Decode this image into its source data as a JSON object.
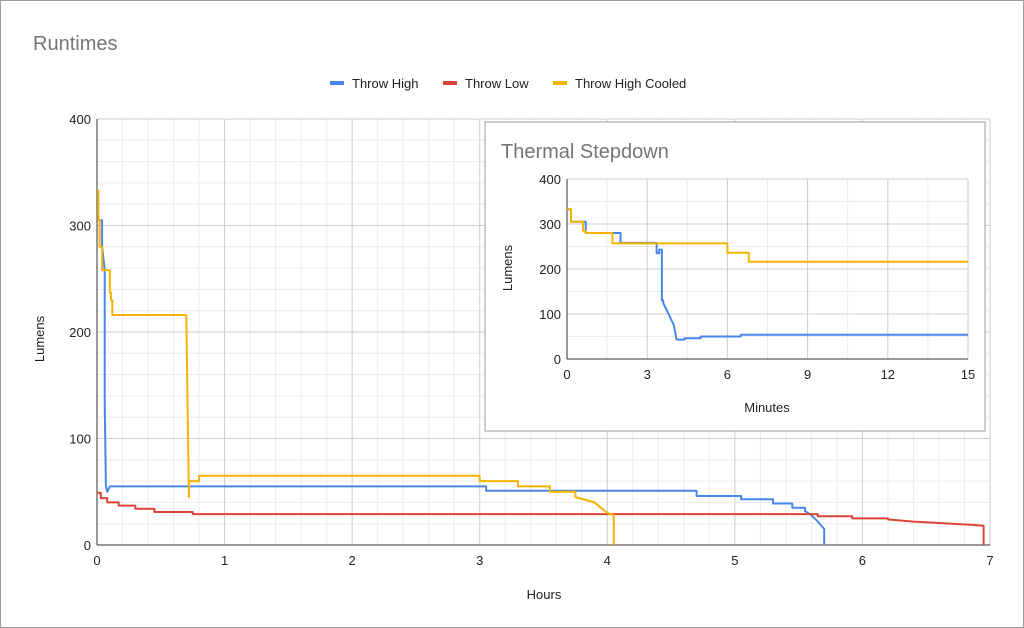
{
  "chart_data": [
    {
      "type": "line",
      "title": "Runtimes",
      "xlabel": "Hours",
      "ylabel": "Lumens",
      "xlim": [
        0,
        7
      ],
      "ylim": [
        0,
        400
      ],
      "xticks": [
        0,
        1,
        2,
        3,
        4,
        5,
        6,
        7
      ],
      "yticks": [
        0,
        100,
        200,
        300,
        400
      ],
      "grid": true,
      "legend": "top-center",
      "series": [
        {
          "name": "Throw High",
          "color": "#4a86e8",
          "x": [
            0,
            0.01,
            0.01,
            0.04,
            0.04,
            0.06,
            0.06,
            0.07,
            0.08,
            0.08,
            0.1,
            0.1,
            3.05,
            3.05,
            4.7,
            4.7,
            5.05,
            5.05,
            5.3,
            5.3,
            5.45,
            5.45,
            5.55,
            5.55,
            5.6,
            5.65,
            5.7,
            5.7
          ],
          "y": [
            333,
            333,
            305,
            305,
            280,
            258,
            135,
            55,
            50,
            50,
            55,
            55,
            55,
            51,
            51,
            46,
            46,
            43,
            43,
            39,
            39,
            35,
            35,
            32,
            28,
            22,
            15,
            0
          ]
        },
        {
          "name": "Throw Low",
          "color": "#db4437",
          "x": [
            0,
            0.03,
            0.03,
            0.08,
            0.08,
            0.17,
            0.17,
            0.3,
            0.3,
            0.45,
            0.45,
            0.75,
            0.75,
            5.65,
            5.65,
            5.92,
            5.92,
            6.2,
            6.2,
            6.4,
            6.55,
            6.7,
            6.85,
            6.95,
            6.95
          ],
          "y": [
            49,
            49,
            44,
            44,
            40,
            40,
            37,
            37,
            34,
            34,
            31,
            31,
            29,
            29,
            27,
            27,
            25,
            25,
            24,
            22,
            21,
            20,
            19,
            18,
            0
          ]
        },
        {
          "name": "Throw High Cooled",
          "color": "#f4b400",
          "x": [
            0,
            0.01,
            0.01,
            0.02,
            0.02,
            0.04,
            0.04,
            0.1,
            0.1,
            0.11,
            0.11,
            0.12,
            0.12,
            0.7,
            0.7,
            0.72,
            0.72,
            0.8,
            0.8,
            3.0,
            3.0,
            3.3,
            3.3,
            3.55,
            3.55,
            3.75,
            3.75,
            3.9,
            3.95,
            4.0,
            4.05,
            4.05
          ],
          "y": [
            333,
            333,
            305,
            305,
            280,
            280,
            258,
            258,
            237,
            237,
            230,
            230,
            216,
            216,
            216,
            45,
            60,
            60,
            65,
            65,
            60,
            60,
            55,
            55,
            50,
            50,
            45,
            40,
            35,
            30,
            28,
            0
          ]
        }
      ]
    },
    {
      "type": "line",
      "title": "Thermal Stepdown",
      "xlabel": "Minutes",
      "ylabel": "Lumens",
      "xlim": [
        0,
        15
      ],
      "ylim": [
        0,
        400
      ],
      "xticks": [
        0,
        3,
        6,
        9,
        12,
        15
      ],
      "yticks": [
        0,
        100,
        200,
        300,
        400
      ],
      "grid": true,
      "series": [
        {
          "color": "#4a86e8",
          "x": [
            0,
            0.15,
            0.15,
            0.7,
            0.7,
            0.8,
            0.8,
            2.0,
            2.0,
            3.35,
            3.35,
            3.45,
            3.45,
            3.55,
            3.55,
            3.6,
            3.6,
            3.8,
            4.0,
            4.1,
            4.4,
            4.4,
            5.0,
            5.0,
            6.5,
            6.5,
            15
          ],
          "y": [
            333,
            333,
            305,
            305,
            280,
            280,
            280,
            280,
            258,
            258,
            235,
            235,
            243,
            243,
            130,
            130,
            125,
            100,
            75,
            43,
            43,
            46,
            46,
            50,
            50,
            54,
            54
          ]
        },
        {
          "color": "#f4b400",
          "x": [
            0,
            0.15,
            0.15,
            0.6,
            0.6,
            0.7,
            0.7,
            1.7,
            1.7,
            6.0,
            6.0,
            6.8,
            6.8,
            15
          ],
          "y": [
            333,
            333,
            305,
            305,
            285,
            285,
            280,
            280,
            257,
            257,
            236,
            236,
            216,
            216
          ]
        }
      ]
    }
  ]
}
